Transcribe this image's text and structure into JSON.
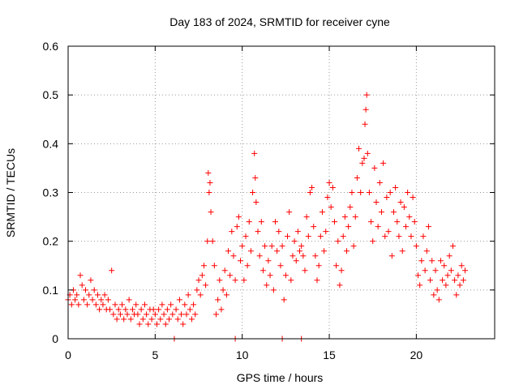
{
  "chart_data": {
    "type": "scatter",
    "title": "Day 183 of 2024, SRMTID for receiver cyne",
    "xlabel": "GPS time / hours",
    "ylabel": "SRMTID / TECUs",
    "xlim": [
      0,
      24.5
    ],
    "ylim": [
      0,
      0.6
    ],
    "x_ticks": [
      0,
      5,
      10,
      15,
      20
    ],
    "x_tick_labels": [
      "0",
      "5",
      "10",
      "15",
      "20"
    ],
    "y_ticks": [
      0,
      0.1,
      0.2,
      0.3,
      0.4,
      0.5,
      0.6
    ],
    "y_tick_labels": [
      "0",
      "0.1",
      "0.2",
      "0.3",
      "0.4",
      "0.5",
      "0.6"
    ],
    "grid": true,
    "marker": "+",
    "color": "#ff0000",
    "series": [
      {
        "name": "SRMTID",
        "points": [
          [
            0.0,
            0.08
          ],
          [
            0.1,
            0.09
          ],
          [
            0.2,
            0.07
          ],
          [
            0.3,
            0.1
          ],
          [
            0.4,
            0.08
          ],
          [
            0.5,
            0.09
          ],
          [
            0.6,
            0.07
          ],
          [
            0.7,
            0.13
          ],
          [
            0.8,
            0.11
          ],
          [
            0.9,
            0.08
          ],
          [
            1.0,
            0.1
          ],
          [
            1.1,
            0.07
          ],
          [
            1.2,
            0.09
          ],
          [
            1.3,
            0.12
          ],
          [
            1.4,
            0.08
          ],
          [
            1.5,
            0.1
          ],
          [
            1.6,
            0.07
          ],
          [
            1.7,
            0.09
          ],
          [
            1.8,
            0.06
          ],
          [
            1.9,
            0.08
          ],
          [
            2.0,
            0.07
          ],
          [
            2.1,
            0.09
          ],
          [
            2.2,
            0.06
          ],
          [
            2.3,
            0.08
          ],
          [
            2.4,
            0.06
          ],
          [
            2.5,
            0.14
          ],
          [
            2.6,
            0.05
          ],
          [
            2.7,
            0.07
          ],
          [
            2.8,
            0.04
          ],
          [
            2.9,
            0.06
          ],
          [
            3.0,
            0.05
          ],
          [
            3.1,
            0.07
          ],
          [
            3.2,
            0.04
          ],
          [
            3.3,
            0.06
          ],
          [
            3.4,
            0.05
          ],
          [
            3.5,
            0.08
          ],
          [
            3.6,
            0.04
          ],
          [
            3.7,
            0.06
          ],
          [
            3.8,
            0.05
          ],
          [
            3.9,
            0.07
          ],
          [
            4.0,
            0.05
          ],
          [
            4.1,
            0.03
          ],
          [
            4.2,
            0.06
          ],
          [
            4.3,
            0.04
          ],
          [
            4.4,
            0.07
          ],
          [
            4.5,
            0.05
          ],
          [
            4.6,
            0.03
          ],
          [
            4.7,
            0.06
          ],
          [
            4.8,
            0.04
          ],
          [
            4.9,
            0.06
          ],
          [
            5.0,
            0.05
          ],
          [
            5.1,
            0.03
          ],
          [
            5.2,
            0.06
          ],
          [
            5.3,
            0.04
          ],
          [
            5.4,
            0.07
          ],
          [
            5.5,
            0.05
          ],
          [
            5.6,
            0.03
          ],
          [
            5.7,
            0.06
          ],
          [
            5.8,
            0.04
          ],
          [
            5.9,
            0.07
          ],
          [
            6.0,
            0.05
          ],
          [
            6.1,
            0.0
          ],
          [
            6.2,
            0.06
          ],
          [
            6.3,
            0.04
          ],
          [
            6.4,
            0.08
          ],
          [
            6.5,
            0.05
          ],
          [
            6.6,
            0.03
          ],
          [
            6.7,
            0.07
          ],
          [
            6.8,
            0.05
          ],
          [
            6.9,
            0.09
          ],
          [
            7.0,
            0.06
          ],
          [
            7.1,
            0.04
          ],
          [
            7.2,
            0.07
          ],
          [
            7.3,
            0.05
          ],
          [
            7.4,
            0.1
          ],
          [
            7.5,
            0.12
          ],
          [
            7.6,
            0.09
          ],
          [
            7.7,
            0.13
          ],
          [
            7.8,
            0.15
          ],
          [
            7.9,
            0.11
          ],
          [
            8.0,
            0.2
          ],
          [
            8.05,
            0.34
          ],
          [
            8.1,
            0.3
          ],
          [
            8.15,
            0.32
          ],
          [
            8.2,
            0.26
          ],
          [
            8.3,
            0.2
          ],
          [
            8.4,
            0.15
          ],
          [
            8.5,
            0.05
          ],
          [
            8.6,
            0.08
          ],
          [
            8.7,
            0.12
          ],
          [
            8.8,
            0.06
          ],
          [
            8.9,
            0.1
          ],
          [
            9.0,
            0.14
          ],
          [
            9.1,
            0.09
          ],
          [
            9.2,
            0.18
          ],
          [
            9.3,
            0.13
          ],
          [
            9.4,
            0.22
          ],
          [
            9.5,
            0.17
          ],
          [
            9.6,
            0.12
          ],
          [
            9.7,
            0.23
          ],
          [
            9.8,
            0.25
          ],
          [
            9.9,
            0.16
          ],
          [
            10.0,
            0.19
          ],
          [
            10.1,
            0.12
          ],
          [
            10.2,
            0.21
          ],
          [
            10.3,
            0.15
          ],
          [
            10.4,
            0.24
          ],
          [
            10.5,
            0.18
          ],
          [
            10.6,
            0.3
          ],
          [
            10.7,
            0.38
          ],
          [
            10.75,
            0.33
          ],
          [
            10.8,
            0.28
          ],
          [
            10.9,
            0.22
          ],
          [
            11.0,
            0.17
          ],
          [
            11.1,
            0.24
          ],
          [
            11.2,
            0.14
          ],
          [
            11.3,
            0.19
          ],
          [
            11.4,
            0.11
          ],
          [
            11.5,
            0.16
          ],
          [
            11.6,
            0.13
          ],
          [
            11.7,
            0.19
          ],
          [
            11.8,
            0.1
          ],
          [
            11.9,
            0.24
          ],
          [
            12.0,
            0.18
          ],
          [
            12.1,
            0.22
          ],
          [
            12.2,
            0.15
          ],
          [
            12.3,
            0.19
          ],
          [
            12.4,
            0.08
          ],
          [
            12.5,
            0.13
          ],
          [
            12.6,
            0.21
          ],
          [
            12.7,
            0.26
          ],
          [
            12.8,
            0.12
          ],
          [
            12.9,
            0.17
          ],
          [
            13.0,
            0.2
          ],
          [
            13.1,
            0.16
          ],
          [
            13.2,
            0.22
          ],
          [
            13.3,
            0.18
          ],
          [
            13.4,
            0.19
          ],
          [
            13.5,
            0.17
          ],
          [
            13.6,
            0.14
          ],
          [
            13.7,
            0.25
          ],
          [
            13.8,
            0.21
          ],
          [
            13.9,
            0.3
          ],
          [
            14.0,
            0.31
          ],
          [
            14.1,
            0.23
          ],
          [
            14.2,
            0.17
          ],
          [
            14.3,
            0.12
          ],
          [
            14.4,
            0.15
          ],
          [
            14.5,
            0.21
          ],
          [
            14.6,
            0.26
          ],
          [
            14.7,
            0.18
          ],
          [
            14.8,
            0.22
          ],
          [
            14.9,
            0.29
          ],
          [
            15.0,
            0.32
          ],
          [
            15.1,
            0.27
          ],
          [
            15.2,
            0.31
          ],
          [
            15.3,
            0.24
          ],
          [
            15.4,
            0.15
          ],
          [
            15.5,
            0.2
          ],
          [
            15.6,
            0.11
          ],
          [
            15.7,
            0.14
          ],
          [
            15.8,
            0.21
          ],
          [
            15.9,
            0.25
          ],
          [
            16.0,
            0.18
          ],
          [
            16.1,
            0.23
          ],
          [
            16.2,
            0.27
          ],
          [
            16.3,
            0.3
          ],
          [
            16.4,
            0.19
          ],
          [
            16.5,
            0.25
          ],
          [
            16.6,
            0.33
          ],
          [
            16.7,
            0.39
          ],
          [
            16.8,
            0.3
          ],
          [
            16.9,
            0.36
          ],
          [
            17.0,
            0.37
          ],
          [
            17.05,
            0.44
          ],
          [
            17.1,
            0.47
          ],
          [
            17.15,
            0.5
          ],
          [
            17.2,
            0.38
          ],
          [
            17.3,
            0.3
          ],
          [
            17.4,
            0.24
          ],
          [
            17.5,
            0.2
          ],
          [
            17.6,
            0.35
          ],
          [
            17.7,
            0.28
          ],
          [
            17.8,
            0.23
          ],
          [
            17.9,
            0.32
          ],
          [
            18.0,
            0.26
          ],
          [
            18.1,
            0.36
          ],
          [
            18.2,
            0.21
          ],
          [
            18.3,
            0.29
          ],
          [
            18.4,
            0.22
          ],
          [
            18.5,
            0.3
          ],
          [
            18.6,
            0.17
          ],
          [
            18.7,
            0.26
          ],
          [
            18.8,
            0.31
          ],
          [
            18.9,
            0.24
          ],
          [
            19.0,
            0.21
          ],
          [
            19.1,
            0.28
          ],
          [
            19.2,
            0.18
          ],
          [
            19.3,
            0.27
          ],
          [
            19.4,
            0.23
          ],
          [
            19.5,
            0.3
          ],
          [
            19.6,
            0.25
          ],
          [
            19.7,
            0.21
          ],
          [
            19.8,
            0.29
          ],
          [
            19.9,
            0.24
          ],
          [
            20.0,
            0.19
          ],
          [
            20.1,
            0.13
          ],
          [
            20.2,
            0.11
          ],
          [
            20.3,
            0.16
          ],
          [
            20.4,
            0.21
          ],
          [
            20.5,
            0.14
          ],
          [
            20.6,
            0.18
          ],
          [
            20.7,
            0.23
          ],
          [
            20.8,
            0.12
          ],
          [
            20.9,
            0.16
          ],
          [
            21.0,
            0.09
          ],
          [
            21.1,
            0.14
          ],
          [
            21.2,
            0.1
          ],
          [
            21.3,
            0.08
          ],
          [
            21.4,
            0.16
          ],
          [
            21.5,
            0.12
          ],
          [
            21.6,
            0.15
          ],
          [
            21.7,
            0.11
          ],
          [
            21.8,
            0.13
          ],
          [
            21.9,
            0.17
          ],
          [
            22.0,
            0.14
          ],
          [
            22.1,
            0.19
          ],
          [
            22.2,
            0.12
          ],
          [
            22.3,
            0.09
          ],
          [
            22.4,
            0.13
          ],
          [
            22.5,
            0.11
          ],
          [
            22.6,
            0.15
          ],
          [
            22.7,
            0.12
          ],
          [
            22.8,
            0.14
          ],
          [
            9.6,
            0.0
          ],
          [
            12.3,
            0.0
          ],
          [
            13.4,
            0.0
          ]
        ]
      }
    ]
  }
}
